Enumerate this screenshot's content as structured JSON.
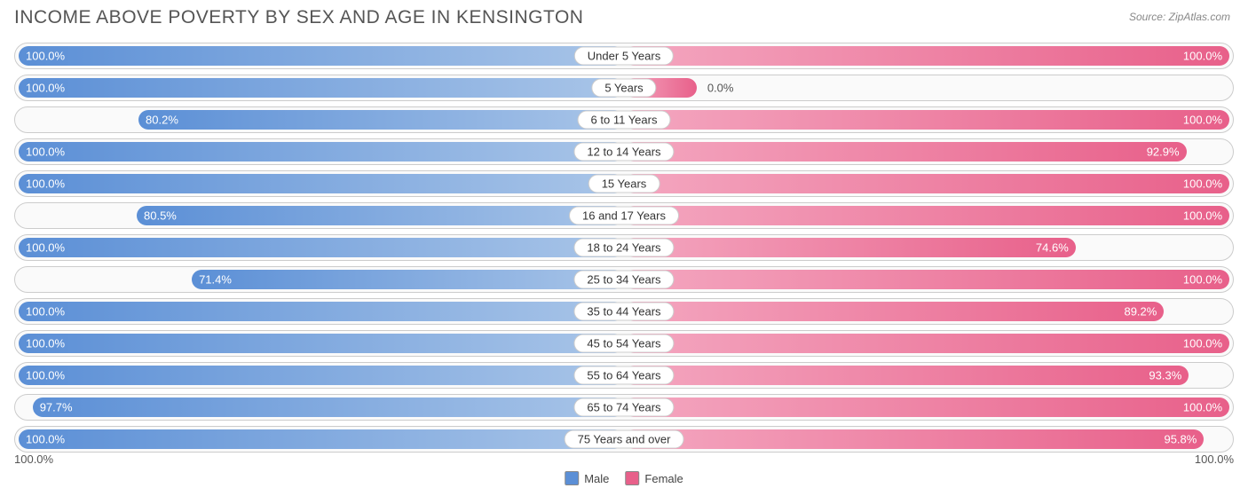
{
  "title": "INCOME ABOVE POVERTY BY SEX AND AGE IN KENSINGTON",
  "source": "Source: ZipAtlas.com",
  "chart": {
    "type": "diverging-bar",
    "male_color": "#5b8fd6",
    "male_color_light": "#a9c5e8",
    "female_color": "#e8608a",
    "female_color_light": "#f4a7c0",
    "background": "#ffffff",
    "row_bg": "#fafafa",
    "row_border": "#cccccc",
    "label_bg": "#ffffff",
    "text_color": "#ffffff",
    "axis_color": "#555555",
    "xlim": [
      0,
      100
    ],
    "rows": [
      {
        "category": "Under 5 Years",
        "male": 100.0,
        "female": 100.0
      },
      {
        "category": "5 Years",
        "male": 100.0,
        "female": 0.0
      },
      {
        "category": "6 to 11 Years",
        "male": 80.2,
        "female": 100.0
      },
      {
        "category": "12 to 14 Years",
        "male": 100.0,
        "female": 92.9
      },
      {
        "category": "15 Years",
        "male": 100.0,
        "female": 100.0
      },
      {
        "category": "16 and 17 Years",
        "male": 80.5,
        "female": 100.0
      },
      {
        "category": "18 to 24 Years",
        "male": 100.0,
        "female": 74.6
      },
      {
        "category": "25 to 34 Years",
        "male": 71.4,
        "female": 100.0
      },
      {
        "category": "35 to 44 Years",
        "male": 100.0,
        "female": 89.2
      },
      {
        "category": "45 to 54 Years",
        "male": 100.0,
        "female": 100.0
      },
      {
        "category": "55 to 64 Years",
        "male": 100.0,
        "female": 93.3
      },
      {
        "category": "65 to 74 Years",
        "male": 97.7,
        "female": 100.0
      },
      {
        "category": "75 Years and over",
        "male": 100.0,
        "female": 95.8
      }
    ]
  },
  "axis": {
    "left": "100.0%",
    "right": "100.0%"
  },
  "legend": {
    "male": "Male",
    "female": "Female"
  }
}
